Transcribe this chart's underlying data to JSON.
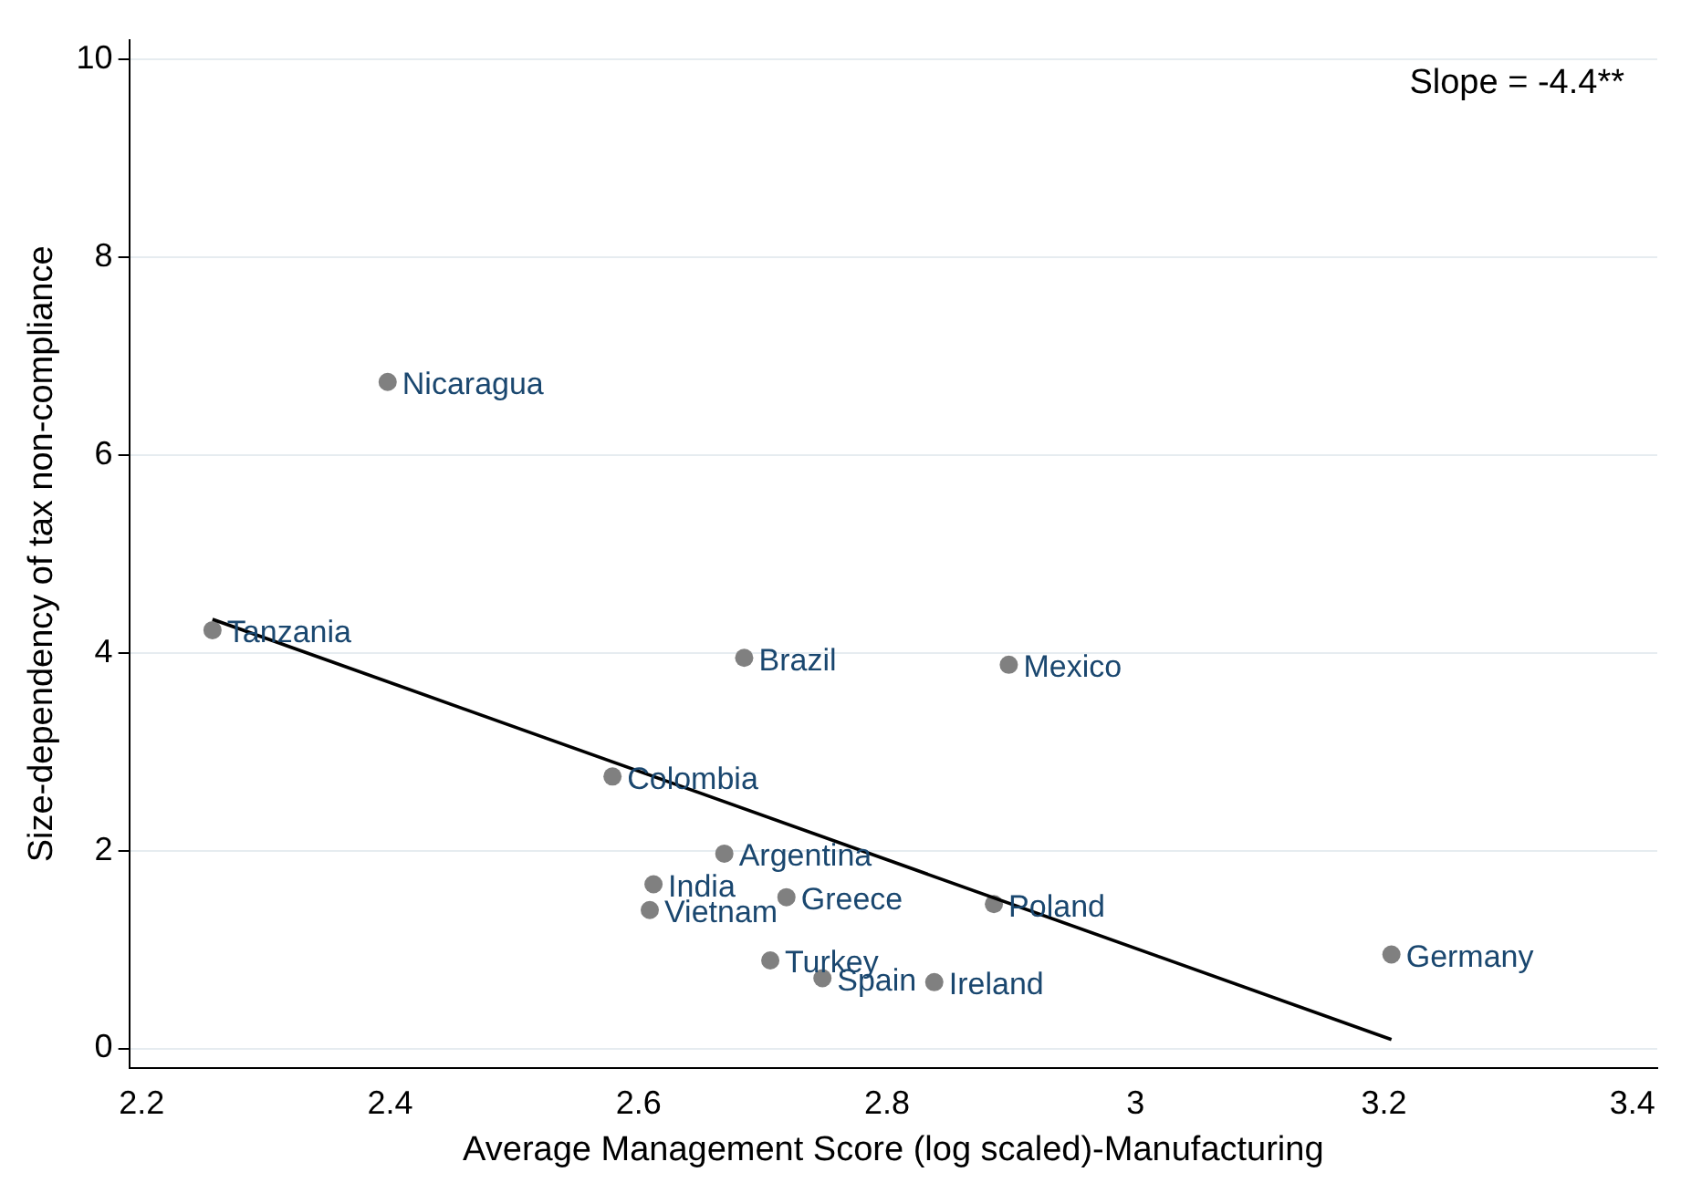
{
  "chart_data": {
    "type": "scatter",
    "xlabel": "Average Management Score (log scaled)-Manufacturing",
    "ylabel": "Size-dependency of tax non-compliance",
    "x": [
      2.398,
      2.257,
      2.685,
      2.898,
      2.579,
      2.669,
      2.612,
      2.609,
      2.719,
      2.886,
      2.706,
      2.748,
      2.838,
      3.206
    ],
    "series": [
      {
        "type": "scatter",
        "marker": "circle",
        "color": "#808080",
        "values": [
          6.74,
          4.23,
          3.95,
          3.88,
          2.75,
          1.97,
          1.66,
          1.4,
          1.53,
          1.46,
          0.89,
          0.71,
          0.67,
          0.95
        ]
      },
      {
        "type": "line",
        "marker": "none",
        "color": "#000000",
        "x": [
          2.257,
          3.206
        ],
        "values": [
          4.34,
          0.09
        ]
      }
    ],
    "xlim": [
      2.19,
      3.42
    ],
    "xticks": [
      2.2,
      2.4,
      2.6,
      2.8,
      3,
      3.2,
      3.4
    ],
    "ylim": [
      -0.2,
      10.2
    ],
    "yticks": [
      0,
      2,
      4,
      6,
      8,
      10
    ],
    "grid": "y",
    "legend": false,
    "annotations": [
      "Slope = -4.4**",
      {
        "text": "Nicaragua",
        "x": 2.398,
        "y": 6.74
      },
      {
        "text": "Tanzania",
        "x": 2.257,
        "y": 4.23
      },
      {
        "text": "Brazil",
        "x": 2.685,
        "y": 3.95
      },
      {
        "text": "Mexico",
        "x": 2.898,
        "y": 3.88
      },
      {
        "text": "Colombia",
        "x": 2.579,
        "y": 2.75
      },
      {
        "text": "Argentina",
        "x": 2.669,
        "y": 1.97
      },
      {
        "text": "India",
        "x": 2.612,
        "y": 1.66
      },
      {
        "text": "Vietnam",
        "x": 2.609,
        "y": 1.4
      },
      {
        "text": "Greece",
        "x": 2.719,
        "y": 1.53
      },
      {
        "text": "Poland",
        "x": 2.886,
        "y": 1.46
      },
      {
        "text": "Turkey",
        "x": 2.706,
        "y": 0.89
      },
      {
        "text": "Spain",
        "x": 2.748,
        "y": 0.71
      },
      {
        "text": "Ireland",
        "x": 2.838,
        "y": 0.67
      },
      {
        "text": "Germany",
        "x": 3.206,
        "y": 0.95
      }
    ]
  }
}
